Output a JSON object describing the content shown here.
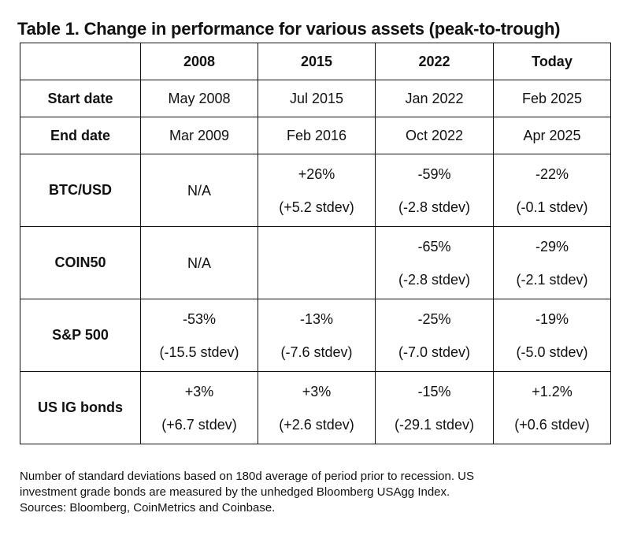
{
  "title": "Table 1. Change in performance for various assets (peak-to-trough)",
  "table": {
    "corner": "",
    "columns": [
      "2008",
      "2015",
      "2022",
      "Today"
    ],
    "rows": [
      {
        "label": "Start date",
        "cells": [
          [
            "May 2008"
          ],
          [
            "Jul 2015"
          ],
          [
            "Jan 2022"
          ],
          [
            "Feb 2025"
          ]
        ]
      },
      {
        "label": "End date",
        "cells": [
          [
            "Mar 2009"
          ],
          [
            "Feb 2016"
          ],
          [
            "Oct 2022"
          ],
          [
            "Apr 2025"
          ]
        ]
      },
      {
        "label": "BTC/USD",
        "cells": [
          [
            "N/A"
          ],
          [
            "+26%",
            "(+5.2 stdev)"
          ],
          [
            "-59%",
            "(-2.8 stdev)"
          ],
          [
            "-22%",
            "(-0.1 stdev)"
          ]
        ]
      },
      {
        "label": "COIN50",
        "cells": [
          [
            "N/A"
          ],
          [],
          [
            "-65%",
            "(-2.8 stdev)"
          ],
          [
            "-29%",
            "(-2.1 stdev)"
          ]
        ]
      },
      {
        "label": "S&P 500",
        "cells": [
          [
            "-53%",
            "(-15.5 stdev)"
          ],
          [
            "-13%",
            "(-7.6 stdev)"
          ],
          [
            "-25%",
            "(-7.0 stdev)"
          ],
          [
            "-19%",
            "(-5.0 stdev)"
          ]
        ]
      },
      {
        "label": "US IG bonds",
        "cells": [
          [
            "+3%",
            "(+6.7 stdev)"
          ],
          [
            "+3%",
            "(+2.6 stdev)"
          ],
          [
            "-15%",
            "(-29.1 stdev)"
          ],
          [
            "+1.2%",
            "(+0.6 stdev)"
          ]
        ]
      }
    ]
  },
  "footnote": "Number of standard deviations based on 180d average of period prior to recession. US\ninvestment grade bonds are measured by the unhedged Bloomberg USAgg Index.\nSources: Bloomberg, CoinMetrics and Coinbase."
}
